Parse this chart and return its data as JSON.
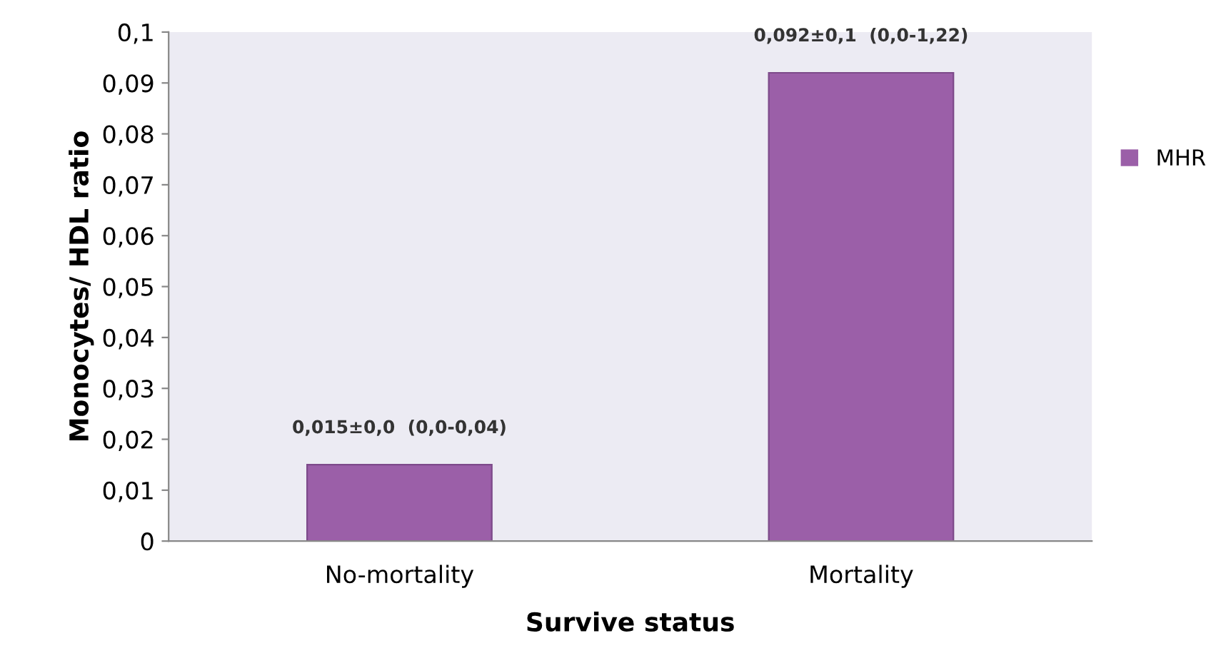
{
  "chart_data": {
    "type": "bar",
    "xlabel": "Survive status",
    "ylabel": "Monocytes/ HDL ratio",
    "categories": [
      "No-mortality",
      "Mortality"
    ],
    "series": [
      {
        "name": "MHR",
        "color": "#9b5fa8",
        "values": [
          0.015,
          0.092
        ],
        "value_labels": [
          "0,015±0,0  (0,0-0,04)",
          "0,092±0,1  (0,0-1,22)"
        ]
      }
    ],
    "ylim": [
      0,
      0.1
    ],
    "yticks": [
      0,
      {
        "value": 0.01,
        "label": "0,01"
      },
      {
        "value": 0.02,
        "label": "0,02"
      },
      {
        "value": 0.03,
        "label": "0,03"
      },
      {
        "value": 0.04,
        "label": "0,04"
      },
      {
        "value": 0.05,
        "label": "0,05"
      },
      {
        "value": 0.06,
        "label": "0,06"
      },
      {
        "value": 0.07,
        "label": "0,07"
      },
      {
        "value": 0.08,
        "label": "0,08"
      },
      {
        "value": 0.09,
        "label": "0,09"
      },
      {
        "value": 0.1,
        "label": "0,1"
      }
    ],
    "grid": false,
    "legend": "right"
  }
}
